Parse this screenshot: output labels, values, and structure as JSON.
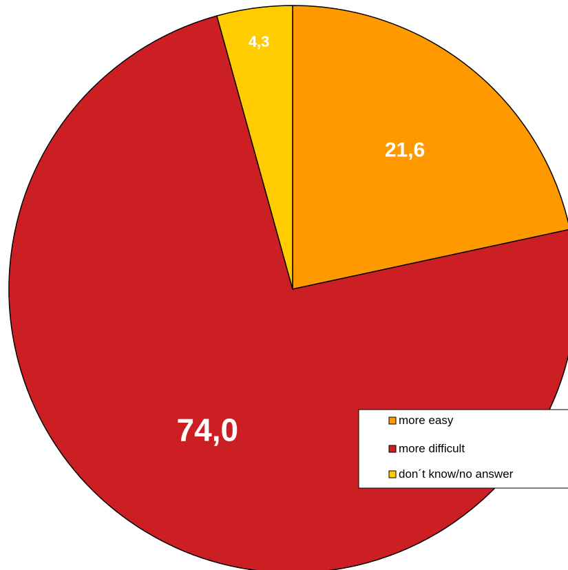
{
  "chart_data": {
    "type": "pie",
    "categories": [
      "more easy",
      "more difficult",
      "don´t know/no answer"
    ],
    "values": [
      21.6,
      74.0,
      4.3
    ],
    "data_labels": [
      "21,6",
      "74,0",
      "4,3"
    ],
    "colors": [
      "#FF9900",
      "#CC1F24",
      "#FFCC00"
    ],
    "start_angle_deg": 0,
    "direction": "clockwise",
    "title": "",
    "legend": {
      "placement": "bottom-right",
      "entries": [
        "more easy",
        "more difficult",
        "don´t know/no answer"
      ]
    }
  }
}
